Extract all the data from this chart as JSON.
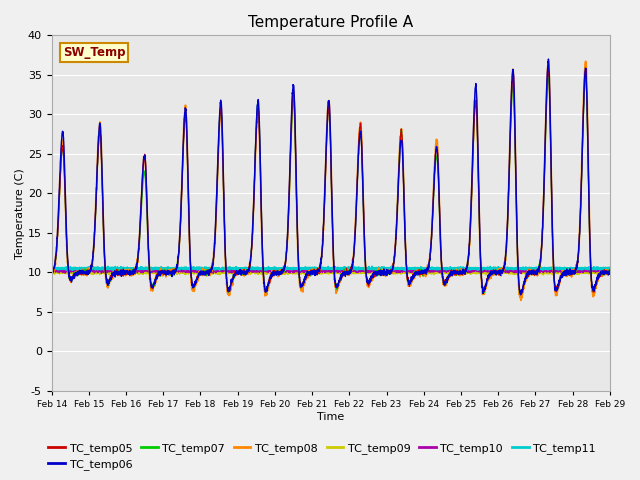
{
  "title": "Temperature Profile A",
  "xlabel": "Time",
  "ylabel": "Temperature (C)",
  "ylim": [
    -5,
    40
  ],
  "x_tick_labels": [
    "Feb 14",
    "Feb 15",
    "Feb 16",
    "Feb 17",
    "Feb 18",
    "Feb 19",
    "Feb 20",
    "Feb 21",
    "Feb 22",
    "Feb 23",
    "Feb 24",
    "Feb 25",
    "Feb 26",
    "Feb 27",
    "Feb 28",
    "Feb 29"
  ],
  "sw_temp_annotation": "SW_Temp",
  "sw_temp_value": 10.0,
  "series_colors": {
    "TC_temp05": "#cc0000",
    "TC_temp06": "#0000cc",
    "TC_temp07": "#00cc00",
    "TC_temp08": "#ff8800",
    "TC_temp09": "#cccc00",
    "TC_temp10": "#aa00aa",
    "TC_temp11": "#00cccc"
  },
  "background_color": "#f0f0f0",
  "plot_bg_color": "#e8e8e8",
  "title_fontsize": 11,
  "legend_fontsize": 8,
  "peak_times": [
    0.3,
    1.3,
    2.5,
    3.6,
    4.55,
    5.55,
    6.5,
    7.45,
    8.3,
    9.4,
    10.35,
    11.4,
    12.4,
    13.35,
    14.35
  ],
  "peak_heights_05": [
    16,
    18,
    15,
    20,
    21,
    21,
    23,
    21,
    19,
    18,
    16,
    22,
    25,
    26,
    26
  ],
  "peak_heights_06": [
    18,
    19,
    15,
    21,
    22,
    22,
    24,
    22,
    18,
    17,
    16,
    24,
    26,
    27,
    26
  ],
  "peak_heights_07": [
    16,
    18,
    13,
    20,
    21,
    22,
    22,
    21,
    18,
    18,
    15,
    22,
    24,
    25,
    25
  ],
  "peak_heights_08": [
    17,
    19,
    15,
    21,
    21,
    21,
    23,
    22,
    19,
    18,
    17,
    23,
    26,
    27,
    27
  ],
  "trough_depths": [
    -1,
    -1.5,
    -2,
    -2,
    -2.5,
    -2.5,
    -2,
    -2,
    -1.5,
    -1.5,
    -1.5,
    -2.5,
    -3,
    -2.5,
    -2.5
  ]
}
